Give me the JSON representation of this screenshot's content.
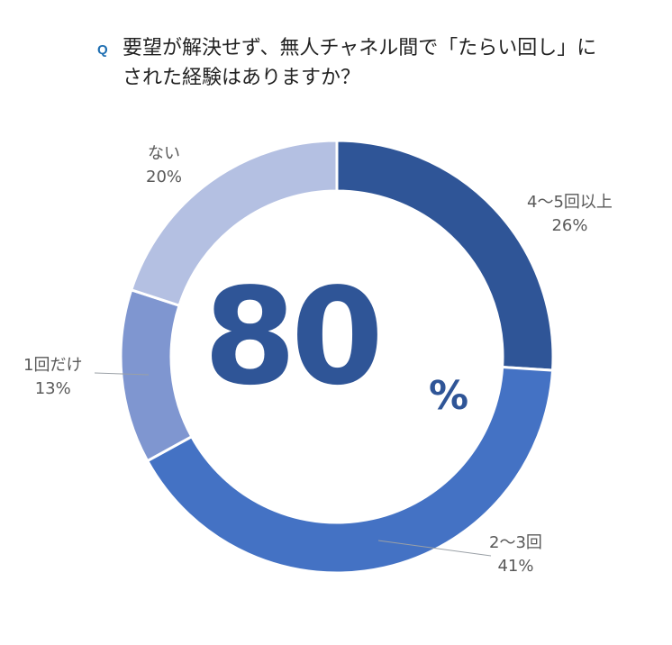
{
  "header": {
    "badge": "Q",
    "line1": "要望が解決せず、無人チャネル間で「たらい回し」に",
    "line2": "された経験はありますか？"
  },
  "center": {
    "value": "80",
    "unit": "%"
  },
  "colors": {
    "slice_4_5": "#2f5597",
    "slice_2_3": "#4472c4",
    "slice_1": "#7f96d0",
    "slice_none": "#b4c0e2",
    "center_text": "#2f5597"
  },
  "chart_data": {
    "type": "pie",
    "donut": true,
    "title": "",
    "slices": [
      {
        "label": "4～5回以上",
        "value": 26,
        "display": "26%"
      },
      {
        "label": "2～3回",
        "value": 41,
        "display": "41%"
      },
      {
        "label": "1回だけ",
        "value": 13,
        "display": "13%"
      },
      {
        "label": "ない",
        "value": 20,
        "display": "20%"
      }
    ]
  }
}
